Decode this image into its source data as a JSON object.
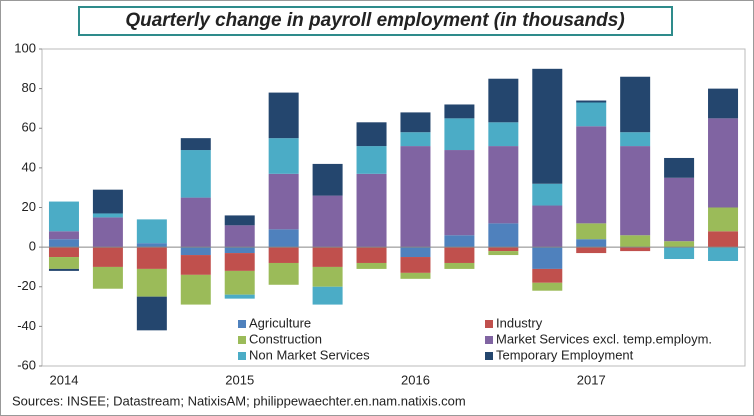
{
  "chart_data": {
    "type": "stacked-bar",
    "title": "Quarterly change in payroll employment (in thousands)",
    "source": "Sources: INSEE; Datastream; NatixisAM; philippewaechter.en.nam.natixis.com",
    "categories": [
      "2014",
      null,
      null,
      null,
      "2015",
      null,
      null,
      null,
      "2016",
      null,
      null,
      null,
      "2017",
      null,
      null,
      null
    ],
    "series": [
      {
        "name": "Agriculture",
        "color": "#4f81bd",
        "values": [
          4,
          0,
          2,
          -4,
          -3,
          9,
          0,
          0,
          -5,
          6,
          12,
          -11,
          4,
          0,
          0,
          0
        ]
      },
      {
        "name": "Industry",
        "color": "#c0504d",
        "values": [
          -5,
          -10,
          -11,
          -10,
          -9,
          -8,
          -10,
          -8,
          -8,
          -8,
          -2,
          -7,
          -3,
          -2,
          0,
          8
        ]
      },
      {
        "name": "Construction",
        "color": "#9bbb59",
        "values": [
          -6,
          -11,
          -14,
          -15,
          -12,
          -11,
          -10,
          -3,
          -3,
          -3,
          -2,
          -4,
          8,
          6,
          3,
          12
        ]
      },
      {
        "name": "Market Services excl. temp.employm.",
        "color": "#8064a2",
        "values": [
          4,
          15,
          0,
          25,
          11,
          28,
          26,
          37,
          51,
          43,
          39,
          21,
          49,
          45,
          32,
          45
        ]
      },
      {
        "name": "Non Market Services",
        "color": "#4bacc6",
        "values": [
          15,
          2,
          12,
          24,
          -2,
          18,
          -9,
          14,
          7,
          16,
          12,
          11,
          12,
          7,
          -6,
          -7
        ]
      },
      {
        "name": "Temporary Employment",
        "color": "#24466e",
        "values": [
          -1,
          12,
          -17,
          6,
          5,
          23,
          16,
          12,
          10,
          7,
          22,
          58,
          1,
          28,
          10,
          15
        ]
      }
    ],
    "ylim": [
      -60,
      100
    ],
    "yticks": [
      -60,
      -40,
      -20,
      0,
      20,
      40,
      60,
      80,
      100
    ]
  }
}
